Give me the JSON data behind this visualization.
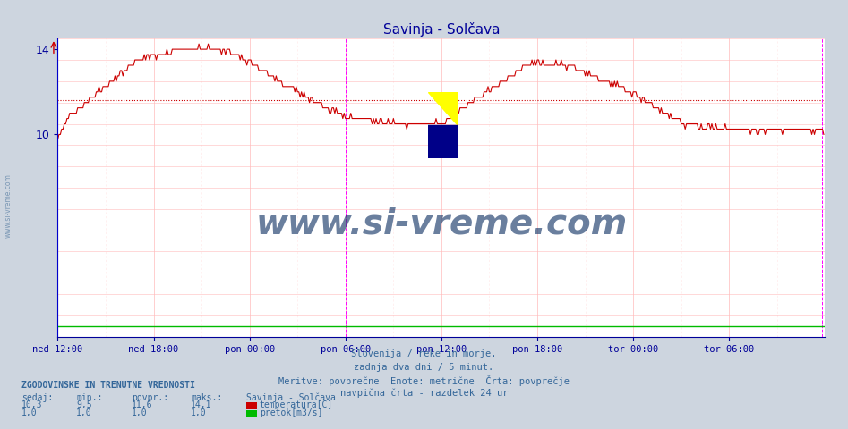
{
  "title": "Savinja - Solčava",
  "bg_color": "#cdd5df",
  "plot_bg_color": "#ffffff",
  "grid_color": "#ffbbbb",
  "grid_minor_color": "#ffe5e5",
  "line_color_temp": "#cc0000",
  "line_color_flow": "#00bb00",
  "avg_value": 11.6,
  "y_min": 0.5,
  "y_max": 14.5,
  "y_ticks": [
    10,
    14
  ],
  "n_points": 576,
  "x_tick_positions": [
    0,
    72,
    144,
    216,
    288,
    360,
    432,
    504
  ],
  "x_tick_labels": [
    "ned 12:00",
    "ned 18:00",
    "pon 00:00",
    "pon 06:00",
    "pon 12:00",
    "pon 18:00",
    "tor 00:00",
    "tor 06:00"
  ],
  "vert_line1": 216,
  "vert_line2": 574,
  "title_color": "#000099",
  "axis_color": "#000099",
  "tick_color": "#000099",
  "text_color": "#336699",
  "watermark": "www.si-vreme.com",
  "watermark_color": "#1a3a6b",
  "subtitle": [
    "Slovenija / reke in morje.",
    "zadnja dva dni / 5 minut.",
    "Meritve: povprečne  Enote: metrične  Črta: povprečje",
    "navpična črta - razdelek 24 ur"
  ],
  "legend_header": "ZGODOVINSKE IN TRENUTNE VREDNOSTI",
  "col_headers": [
    "sedaj:",
    "min.:",
    "povpr.:",
    "maks.:"
  ],
  "series_name": "Savinja - Solčava",
  "temp_vals": [
    "10,3",
    "9,5",
    "11,6",
    "14,1"
  ],
  "flow_vals": [
    "1,0",
    "1,0",
    "1,0",
    "1,0"
  ],
  "temp_label": "temperatura[C]",
  "flow_label": "pretok[m3/s]",
  "temp_rect_color": "#cc0000",
  "flow_rect_color": "#00bb00",
  "side_watermark_color": "#6688aa"
}
